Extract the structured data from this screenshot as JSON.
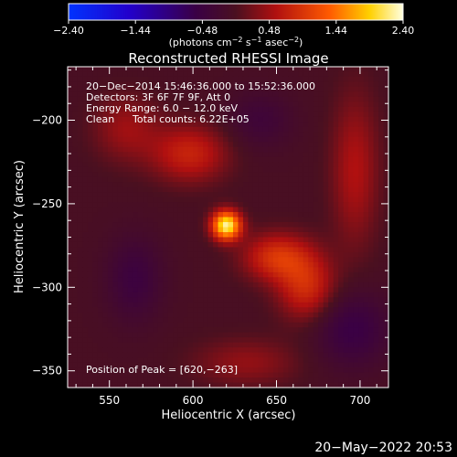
{
  "chart_data": {
    "type": "heatmap",
    "title": "Reconstructed RHESSI Image",
    "xlabel": "Heliocentric X (arcsec)",
    "ylabel": "Heliocentric Y (arcsec)",
    "xlim": [
      525,
      717
    ],
    "ylim": [
      -360,
      -168
    ],
    "xticks": [
      550,
      600,
      650,
      700
    ],
    "yticks": [
      -200,
      -250,
      -300,
      -350
    ],
    "xtick_labels": [
      "550",
      "600",
      "650",
      "700"
    ],
    "ytick_labels": [
      "−200",
      "−250",
      "−300",
      "−350"
    ],
    "colorbar": {
      "range": [
        -2.4,
        2.4
      ],
      "ticks": [
        -2.4,
        -1.44,
        -0.48,
        0.48,
        1.44,
        2.4
      ],
      "tick_labels": [
        "−2.40",
        "−1.44",
        "−0.48",
        "0.48",
        "1.44",
        "2.40"
      ],
      "unit_label_parts": [
        "(photons cm",
        "−2",
        " s",
        "−1",
        " asec",
        "−2",
        ")"
      ]
    },
    "annotations": [
      "20−Dec−2014 15:46:36.000 to 15:52:36.000",
      "Detectors: 3F 6F 7F 9F, Att 0",
      "Energy Range: 6.0 − 12.0 keV",
      "Clean",
      "Total counts: 6.22E+05",
      "Position of Peak = [620,−263]"
    ],
    "peak": {
      "x": 620,
      "y": -263
    },
    "sources": [
      {
        "x": 620,
        "y": -263,
        "sx": 6,
        "sy": 6,
        "amp": 2.3
      },
      {
        "x": 598,
        "y": -220,
        "sx": 16,
        "sy": 12,
        "amp": 0.75
      },
      {
        "x": 650,
        "y": -282,
        "sx": 14,
        "sy": 10,
        "amp": 0.9
      },
      {
        "x": 668,
        "y": -300,
        "sx": 12,
        "sy": 14,
        "amp": 0.85
      },
      {
        "x": 697,
        "y": -230,
        "sx": 10,
        "sy": 32,
        "amp": 0.55
      },
      {
        "x": 560,
        "y": -205,
        "sx": 14,
        "sy": 14,
        "amp": 0.45
      },
      {
        "x": 632,
        "y": -345,
        "sx": 22,
        "sy": 10,
        "amp": 0.4
      },
      {
        "x": 565,
        "y": -295,
        "sx": 12,
        "sy": 18,
        "amp": -0.45
      },
      {
        "x": 640,
        "y": -200,
        "sx": 14,
        "sy": 12,
        "amp": -0.35
      },
      {
        "x": 695,
        "y": -325,
        "sx": 16,
        "sy": 16,
        "amp": -0.55
      }
    ]
  },
  "footer": {
    "timestamp": "20−May−2022 20:53"
  }
}
